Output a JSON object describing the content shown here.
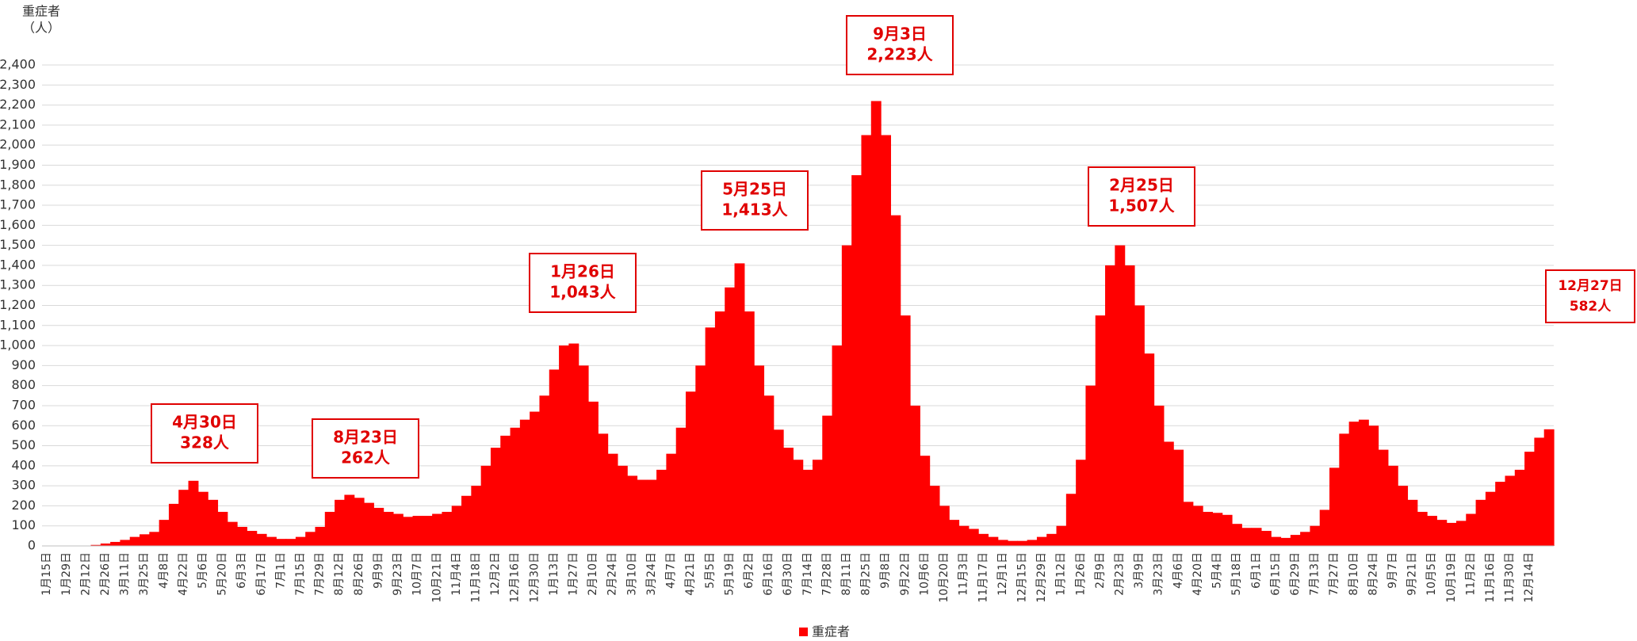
{
  "chart_data": {
    "type": "bar",
    "y_axis_title": [
      "重症者",
      "（人）"
    ],
    "legend": "重症者",
    "color": "#ff0000",
    "grid": true,
    "ylim": [
      0,
      2400
    ],
    "yticks": [
      0,
      100,
      200,
      300,
      400,
      500,
      600,
      700,
      800,
      900,
      {
        "value": 1000,
        "label": "1,000"
      },
      {
        "value": 1100,
        "label": "1,100"
      },
      {
        "value": 1200,
        "label": "1,200"
      },
      {
        "value": 1300,
        "label": "1,300"
      },
      {
        "value": 1400,
        "label": "1,400"
      },
      {
        "value": 1500,
        "label": "1,500"
      },
      {
        "value": 1600,
        "label": "1,600"
      },
      {
        "value": 1700,
        "label": "1,700"
      },
      {
        "value": 1800,
        "label": "1,800"
      },
      {
        "value": 1900,
        "label": "1,900"
      },
      {
        "value": 2000,
        "label": "2,000"
      },
      {
        "value": 2100,
        "label": "2,100"
      },
      {
        "value": 2200,
        "label": "2,200"
      },
      {
        "value": 2300,
        "label": "2,300"
      },
      {
        "value": 2400,
        "label": "2,400"
      }
    ],
    "categories": [
      "1月15日",
      null,
      "1月29日",
      null,
      "2月12日",
      null,
      "2月26日",
      null,
      "3月11日",
      null,
      "3月25日",
      null,
      "4月8日",
      null,
      "4月22日",
      null,
      "5月6日",
      null,
      "5月20日",
      null,
      "6月3日",
      null,
      "6月17日",
      null,
      "7月1日",
      null,
      "7月15日",
      null,
      "7月29日",
      null,
      "8月12日",
      null,
      "8月26日",
      null,
      "9月9日",
      null,
      "9月23日",
      null,
      "10月7日",
      null,
      "10月21日",
      null,
      "11月4日",
      null,
      "11月18日",
      null,
      "12月2日",
      null,
      "12月16日",
      null,
      "12月30日",
      null,
      "1月13日",
      null,
      "1月27日",
      null,
      "2月10日",
      null,
      "2月24日",
      null,
      "3月10日",
      null,
      "3月24日",
      null,
      "4月7日",
      null,
      "4月21日",
      null,
      "5月5日",
      null,
      "5月19日",
      null,
      "6月2日",
      null,
      "6月16日",
      null,
      "6月30日",
      null,
      "7月14日",
      null,
      "7月28日",
      null,
      "8月11日",
      null,
      "8月25日",
      null,
      "9月8日",
      null,
      "9月22日",
      null,
      "10月6日",
      null,
      "10月20日",
      null,
      "11月3日",
      null,
      "11月17日",
      null,
      "12月1日",
      null,
      "12月15日",
      null,
      "12月29日",
      null,
      "1月12日",
      null,
      "1月26日",
      null,
      "2月9日",
      null,
      "2月23日",
      null,
      "3月9日",
      null,
      "3月23日",
      null,
      "4月6日",
      null,
      "4月20日",
      null,
      "5月4日",
      null,
      "5月18日",
      null,
      "6月1日",
      null,
      "6月15日",
      null,
      "6月29日",
      null,
      "7月13日",
      null,
      "7月27日",
      null,
      "8月10日",
      null,
      "8月24日",
      null,
      "9月7日",
      null,
      "9月21日",
      null,
      "10月5日",
      null,
      "10月19日",
      null,
      "11月2日",
      null,
      "11月16日",
      null,
      "11月30日",
      null,
      "12月14日",
      null,
      null
    ],
    "values": [
      0,
      0,
      0,
      0,
      0,
      5,
      12,
      20,
      30,
      45,
      58,
      70,
      130,
      210,
      280,
      325,
      270,
      230,
      170,
      120,
      95,
      75,
      60,
      45,
      35,
      35,
      45,
      70,
      95,
      170,
      230,
      255,
      240,
      215,
      190,
      170,
      160,
      145,
      150,
      150,
      160,
      170,
      200,
      250,
      300,
      400,
      490,
      550,
      590,
      630,
      670,
      750,
      880,
      1000,
      1010,
      900,
      720,
      560,
      460,
      400,
      350,
      330,
      330,
      380,
      460,
      590,
      770,
      900,
      1090,
      1170,
      1290,
      1410,
      1170,
      900,
      750,
      580,
      490,
      430,
      380,
      430,
      650,
      1000,
      1500,
      1850,
      2050,
      2220,
      2050,
      1650,
      1150,
      700,
      450,
      300,
      200,
      130,
      100,
      85,
      60,
      45,
      30,
      25,
      25,
      30,
      45,
      60,
      100,
      260,
      430,
      800,
      1150,
      1400,
      1500,
      1400,
      1200,
      960,
      700,
      520,
      480,
      220,
      200,
      170,
      165,
      155,
      110,
      90,
      90,
      75,
      45,
      40,
      55,
      70,
      100,
      180,
      390,
      560,
      620,
      630,
      600,
      480,
      400,
      300,
      230,
      170,
      150,
      130,
      115,
      125,
      160,
      230,
      270,
      320,
      350,
      380,
      470,
      540,
      582
    ],
    "annotations": [
      [
        "4月30日",
        "328人"
      ],
      [
        "8月23日",
        "262人"
      ],
      [
        "1月26日",
        "1,043人"
      ],
      [
        "5月25日",
        "1,413人"
      ],
      [
        "9月3日",
        "2,223人"
      ],
      [
        "2月25日",
        "1,507人"
      ],
      [
        "12月27日",
        "582人"
      ]
    ]
  }
}
